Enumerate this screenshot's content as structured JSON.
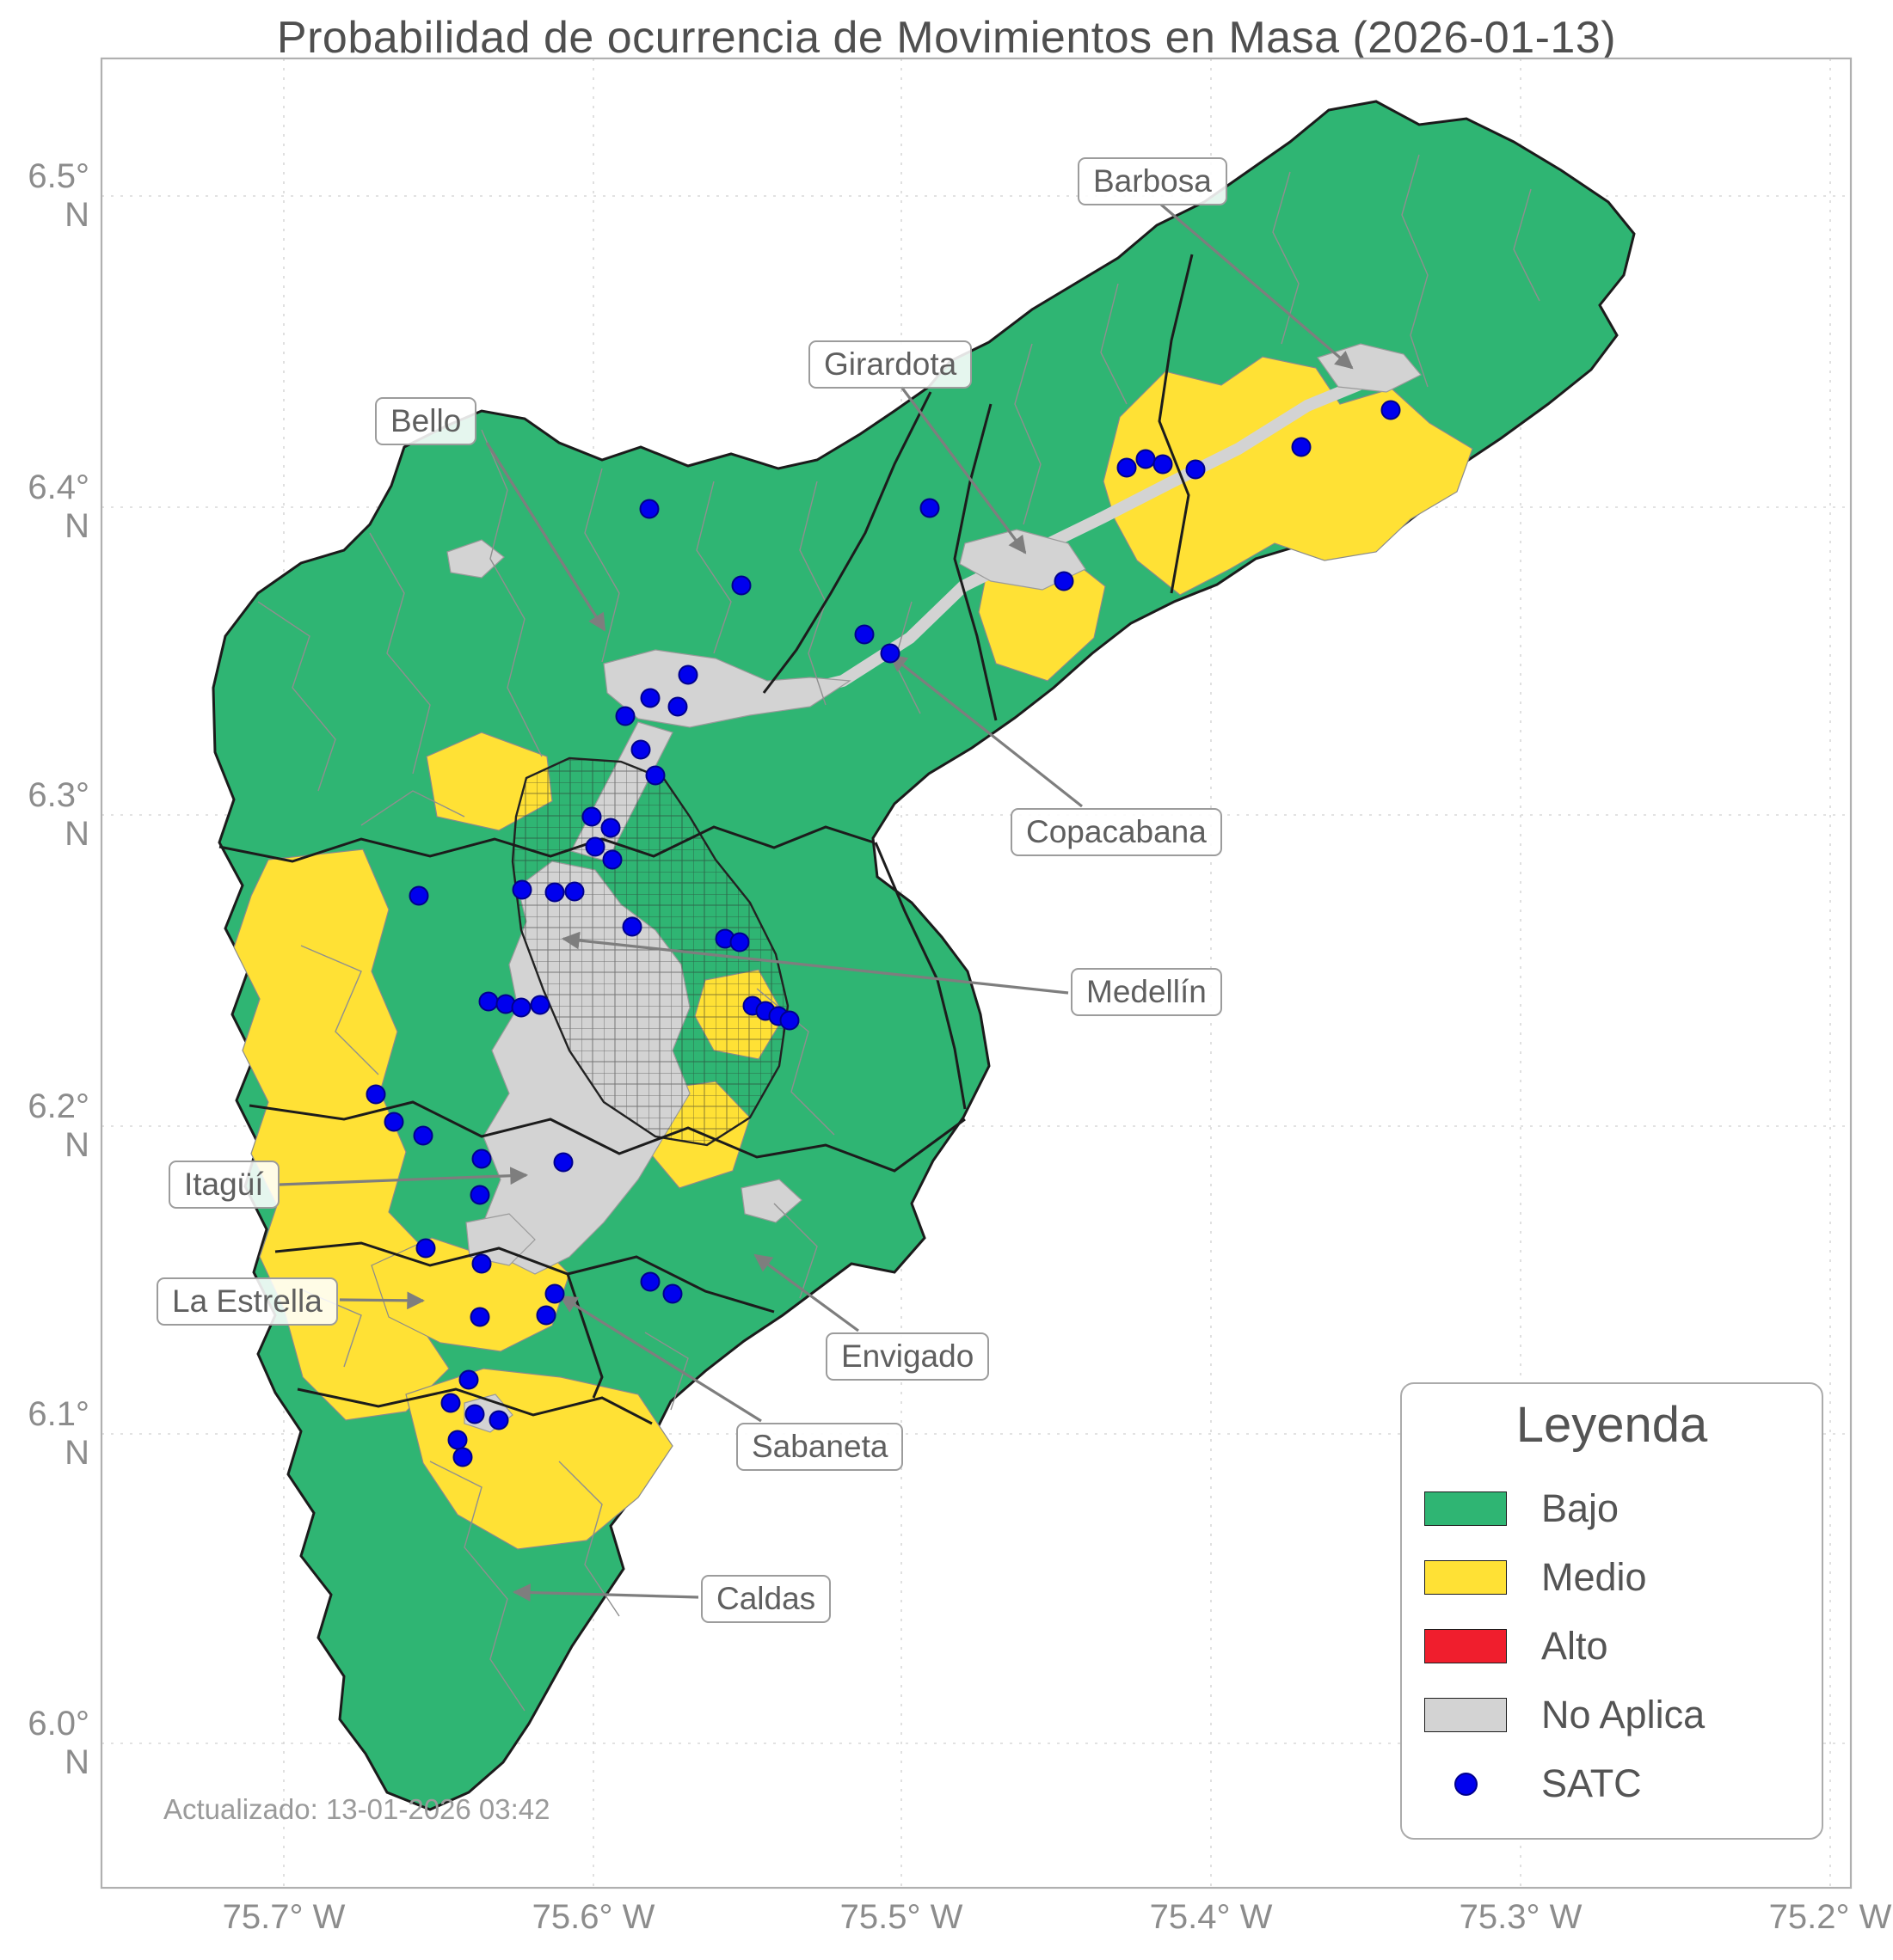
{
  "title": "Probabilidad de ocurrencia de Movimientos en Masa (2026-01-13)",
  "updated": "Actualizado: 13-01-2026 03:42",
  "axes": {
    "y_ticks": [
      "6.5° N",
      "6.4° N",
      "6.3° N",
      "6.2° N",
      "6.1° N",
      "6.0° N"
    ],
    "x_ticks": [
      "75.7° W",
      "75.6° W",
      "75.5° W",
      "75.4° W",
      "75.3° W",
      "75.2° W"
    ]
  },
  "legend": {
    "title": "Leyenda",
    "items": [
      {
        "label": "Bajo",
        "color": "#2fb573",
        "marker": "patch"
      },
      {
        "label": "Medio",
        "color": "#ffe135",
        "marker": "patch"
      },
      {
        "label": "Alto",
        "color": "#f01e2d",
        "marker": "patch"
      },
      {
        "label": "No Aplica",
        "color": "#d3d3d3",
        "marker": "patch"
      },
      {
        "label": "SATC",
        "color": "#0000ee",
        "marker": "dot"
      }
    ]
  },
  "annotations": [
    {
      "label": "Barbosa"
    },
    {
      "label": "Girardota"
    },
    {
      "label": "Bello"
    },
    {
      "label": "Copacabana"
    },
    {
      "label": "Medellín"
    },
    {
      "label": "Itagüí"
    },
    {
      "label": "La Estrella"
    },
    {
      "label": "Envigado"
    },
    {
      "label": "Sabaneta"
    },
    {
      "label": "Caldas"
    }
  ],
  "colors": {
    "low": "#2fb573",
    "medium": "#ffe135",
    "high": "#f01e2d",
    "na": "#d3d3d3",
    "satc": "#0000ee"
  },
  "map": {
    "satc_marker_radius": 10.5,
    "satc_points": [
      [
        1617,
        477
      ],
      [
        1513,
        520
      ],
      [
        1332,
        534
      ],
      [
        1352,
        540
      ],
      [
        1310,
        544
      ],
      [
        1390,
        546
      ],
      [
        1081,
        591
      ],
      [
        755,
        592
      ],
      [
        1237,
        676
      ],
      [
        862,
        681
      ],
      [
        1005,
        738
      ],
      [
        1035,
        760
      ],
      [
        800,
        785
      ],
      [
        756,
        812
      ],
      [
        788,
        822
      ],
      [
        727,
        833
      ],
      [
        745,
        872
      ],
      [
        762,
        902
      ],
      [
        688,
        950
      ],
      [
        710,
        963
      ],
      [
        692,
        985
      ],
      [
        712,
        1000
      ],
      [
        607,
        1035
      ],
      [
        645,
        1038
      ],
      [
        668,
        1037
      ],
      [
        487,
        1042
      ],
      [
        735,
        1078
      ],
      [
        843,
        1092
      ],
      [
        860,
        1096
      ],
      [
        568,
        1165
      ],
      [
        588,
        1168
      ],
      [
        606,
        1172
      ],
      [
        628,
        1169
      ],
      [
        875,
        1170
      ],
      [
        890,
        1176
      ],
      [
        905,
        1182
      ],
      [
        918,
        1187
      ],
      [
        437,
        1273
      ],
      [
        458,
        1305
      ],
      [
        492,
        1321
      ],
      [
        560,
        1348
      ],
      [
        655,
        1352
      ],
      [
        558,
        1390
      ],
      [
        495,
        1452
      ],
      [
        560,
        1470
      ],
      [
        645,
        1505
      ],
      [
        782,
        1505
      ],
      [
        756,
        1491
      ],
      [
        635,
        1530
      ],
      [
        558,
        1532
      ],
      [
        545,
        1605
      ],
      [
        524,
        1632
      ],
      [
        552,
        1645
      ],
      [
        580,
        1652
      ],
      [
        532,
        1675
      ],
      [
        538,
        1695
      ]
    ]
  }
}
